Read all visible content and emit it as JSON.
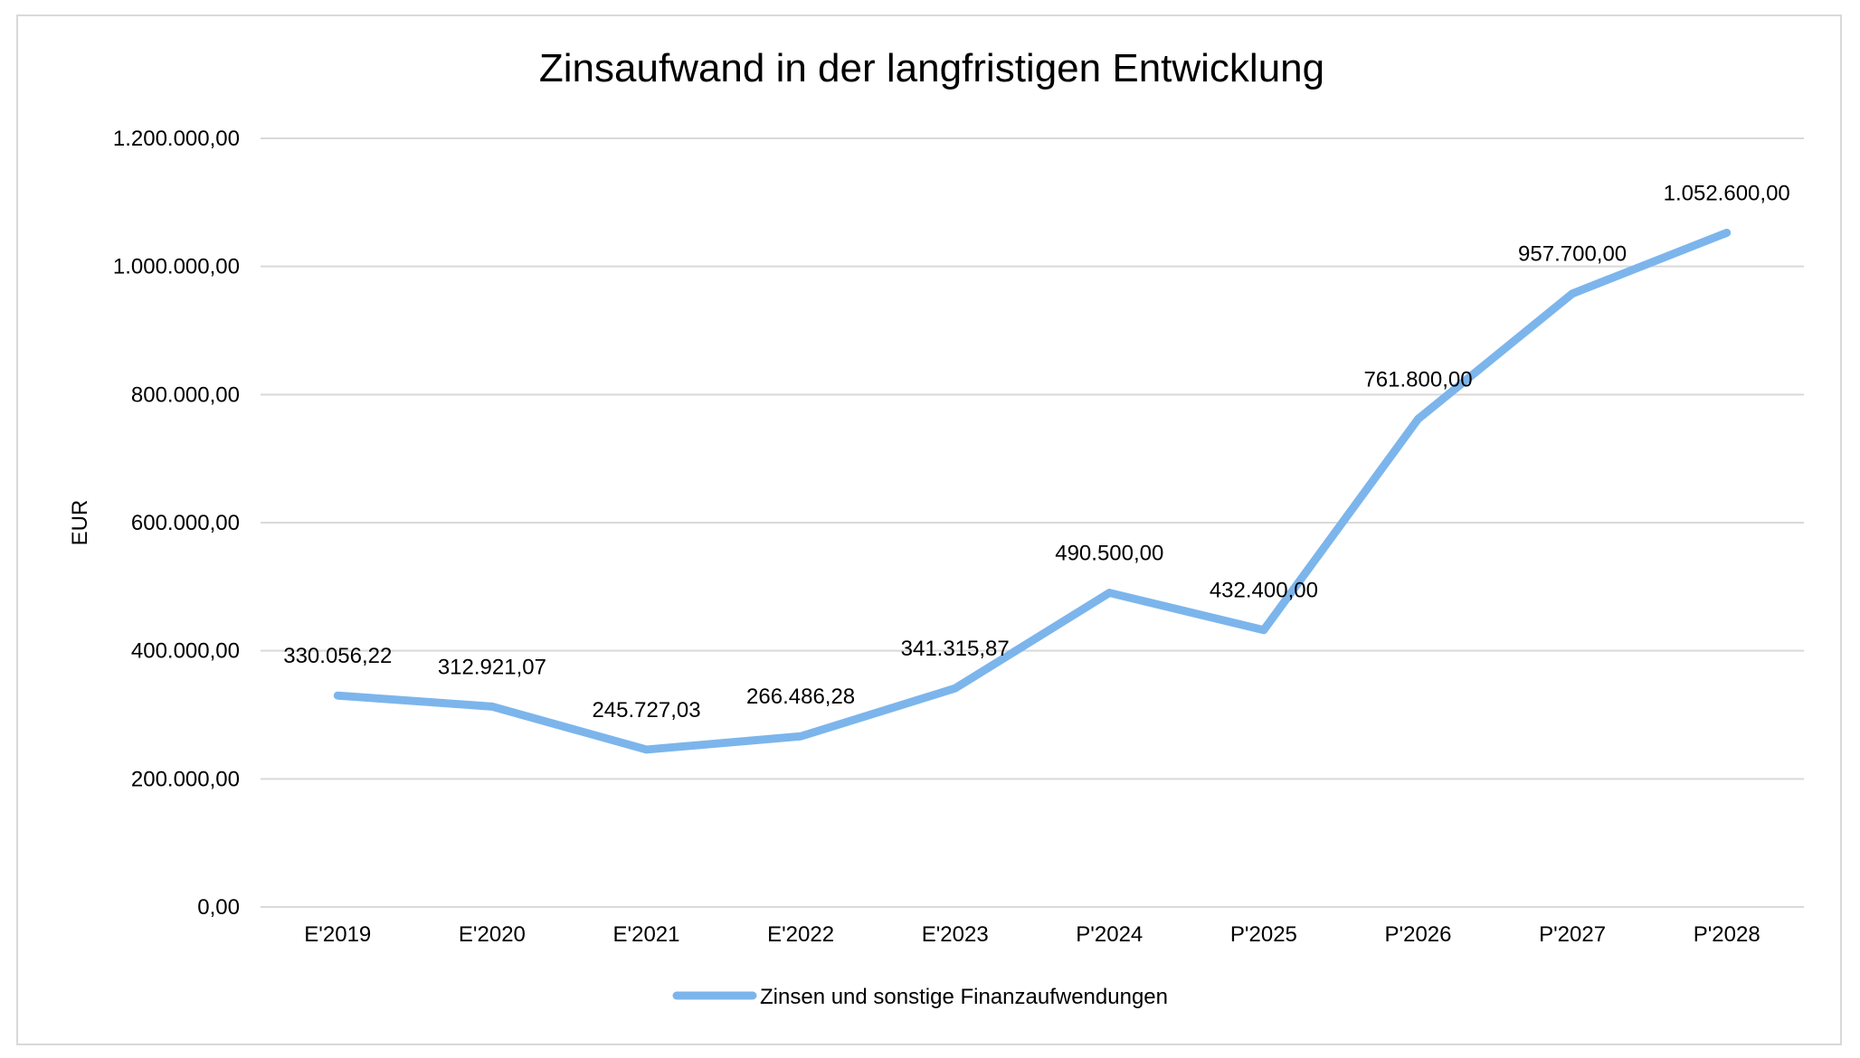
{
  "chart_data": {
    "type": "line",
    "title": "Zinsaufwand in der langfristigen Entwicklung",
    "xlabel": "",
    "ylabel": "EUR",
    "categories": [
      "E'2019",
      "E'2020",
      "E'2021",
      "E'2022",
      "E'2023",
      "P'2024",
      "P'2025",
      "P'2026",
      "P'2027",
      "P'2028"
    ],
    "series": [
      {
        "name": "Zinsen und sonstige Finanzaufwendungen",
        "values": [
          330056.22,
          312921.07,
          245727.03,
          266486.28,
          341315.87,
          490500.0,
          432400.0,
          761800.0,
          957700.0,
          1052600.0
        ],
        "labels": [
          "330.056,22",
          "312.921,07",
          "245.727,03",
          "266.486,28",
          "341.315,87",
          "490.500,00",
          "432.400,00",
          "761.800,00",
          "957.700,00",
          "1.052.600,00"
        ],
        "color": "#7cb5ec"
      }
    ],
    "ylim": [
      0,
      1200000
    ],
    "yticks": [
      0,
      200000,
      400000,
      600000,
      800000,
      1000000,
      1200000
    ],
    "ytick_labels": [
      "0,00",
      "200.000,00",
      "400.000,00",
      "600.000,00",
      "800.000,00",
      "1.000.000,00",
      "1.200.000,00"
    ],
    "grid": true,
    "legend": "bottom-center",
    "gridline_color": "#d9d9d9"
  }
}
